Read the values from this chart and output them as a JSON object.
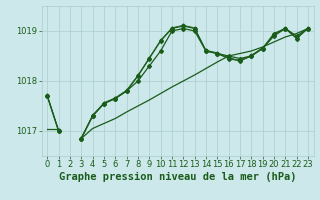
{
  "title": "Graphe pression niveau de la mer (hPa)",
  "background_color": "#cce8ea",
  "grid_color": "#aacccc",
  "line_color": "#1a5c1a",
  "xlim": [
    -0.5,
    23.5
  ],
  "ylim": [
    1016.5,
    1019.5
  ],
  "yticks": [
    1017,
    1018,
    1019
  ],
  "xticks": [
    0,
    1,
    2,
    3,
    4,
    5,
    6,
    7,
    8,
    9,
    10,
    11,
    12,
    13,
    14,
    15,
    16,
    17,
    18,
    19,
    20,
    21,
    22,
    23
  ],
  "y_main": [
    1017.7,
    1017.0,
    null,
    1016.85,
    1017.3,
    1017.55,
    1017.65,
    1017.8,
    1018.1,
    1018.45,
    1018.8,
    1019.05,
    1019.1,
    1019.05,
    1018.6,
    1018.55,
    1018.45,
    1018.4,
    1018.5,
    1018.65,
    1018.9,
    1019.05,
    1018.85,
    1019.05
  ],
  "y_line2": [
    1017.7,
    1017.0,
    null,
    1016.85,
    1017.3,
    1017.55,
    1017.65,
    1017.8,
    1018.0,
    1018.3,
    1018.6,
    1019.0,
    1019.05,
    1019.0,
    1018.6,
    1018.55,
    1018.5,
    1018.45,
    1018.5,
    1018.65,
    1018.95,
    1019.05,
    1018.9,
    1019.05
  ],
  "y_trend": [
    1017.05,
    1017.05,
    null,
    1016.85,
    1017.05,
    1017.15,
    1017.25,
    1017.38,
    1017.5,
    1017.62,
    1017.75,
    1017.88,
    1018.0,
    1018.12,
    1018.25,
    1018.38,
    1018.5,
    1018.55,
    1018.6,
    1018.68,
    1018.78,
    1018.88,
    1018.95,
    1019.05
  ],
  "title_fontsize": 7.5,
  "tick_fontsize": 6
}
